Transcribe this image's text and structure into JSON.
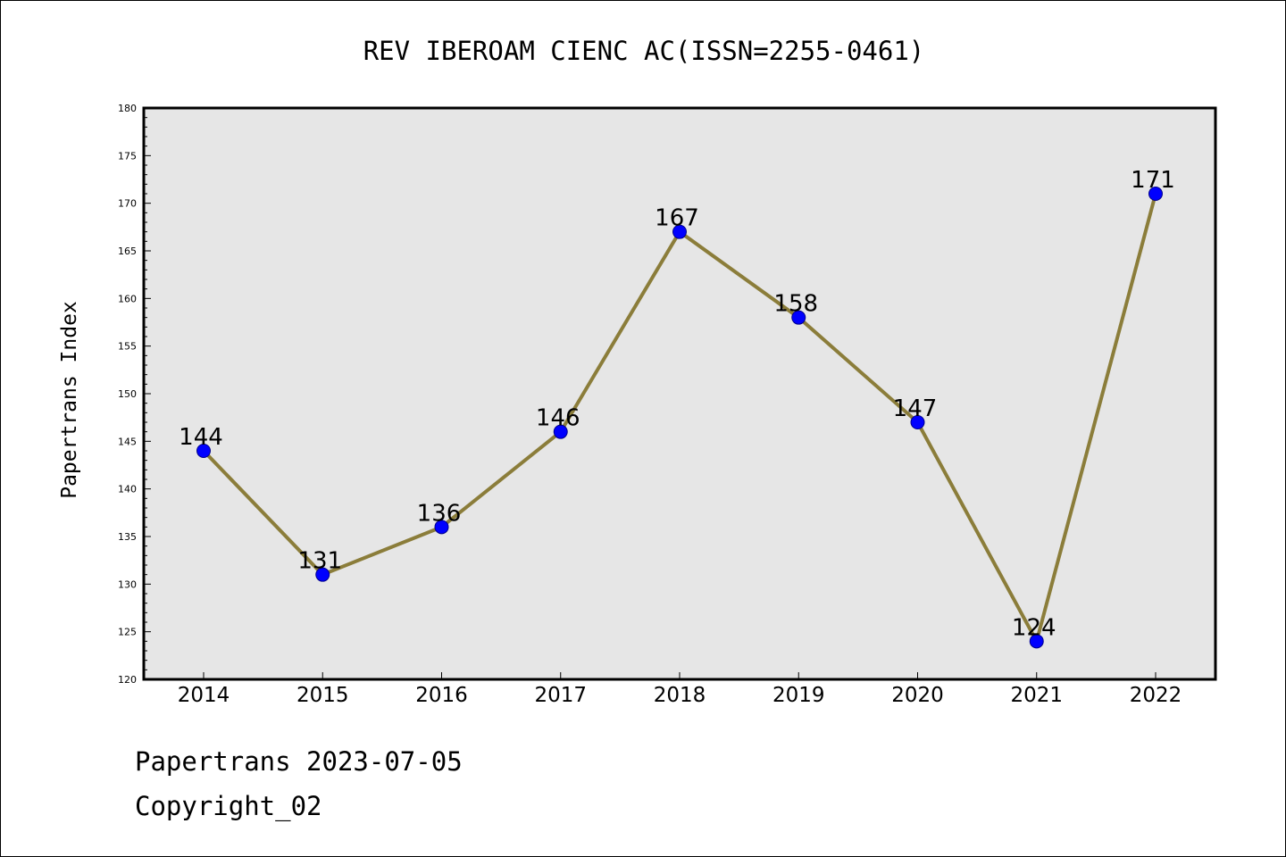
{
  "colors": {
    "plot_background": "#e6e6e6",
    "line": "#8b7d3a",
    "marker_fill": "#0000ff",
    "marker_edge": "#00008b",
    "frame": "#000000"
  },
  "chart_data": {
    "type": "line",
    "title": "REV IBEROAM CIENC AC(ISSN=2255-0461)",
    "xlabel": "",
    "ylabel": "Papertrans Index",
    "categories": [
      "2014",
      "2015",
      "2016",
      "2017",
      "2018",
      "2019",
      "2020",
      "2021",
      "2022"
    ],
    "series": [
      {
        "values": [
          144,
          131,
          136,
          146,
          167,
          158,
          147,
          124,
          171
        ]
      }
    ],
    "data_labels": [
      "144",
      "131",
      "136",
      "146",
      "167",
      "158",
      "147",
      "124",
      "171"
    ],
    "ylim": [
      120,
      180
    ],
    "yticks": [
      120,
      125,
      130,
      135,
      140,
      145,
      150,
      155,
      160,
      165,
      170,
      175,
      180
    ],
    "ytick_labels": [
      "120",
      "125",
      "130",
      "135",
      "140",
      "145",
      "150",
      "155",
      "160",
      "165",
      "170",
      "175",
      "180"
    ],
    "grid": false,
    "legend": "none"
  },
  "footer": {
    "date_text": "Papertrans 2023-07-05",
    "copyright_text": "Copyright_02"
  }
}
